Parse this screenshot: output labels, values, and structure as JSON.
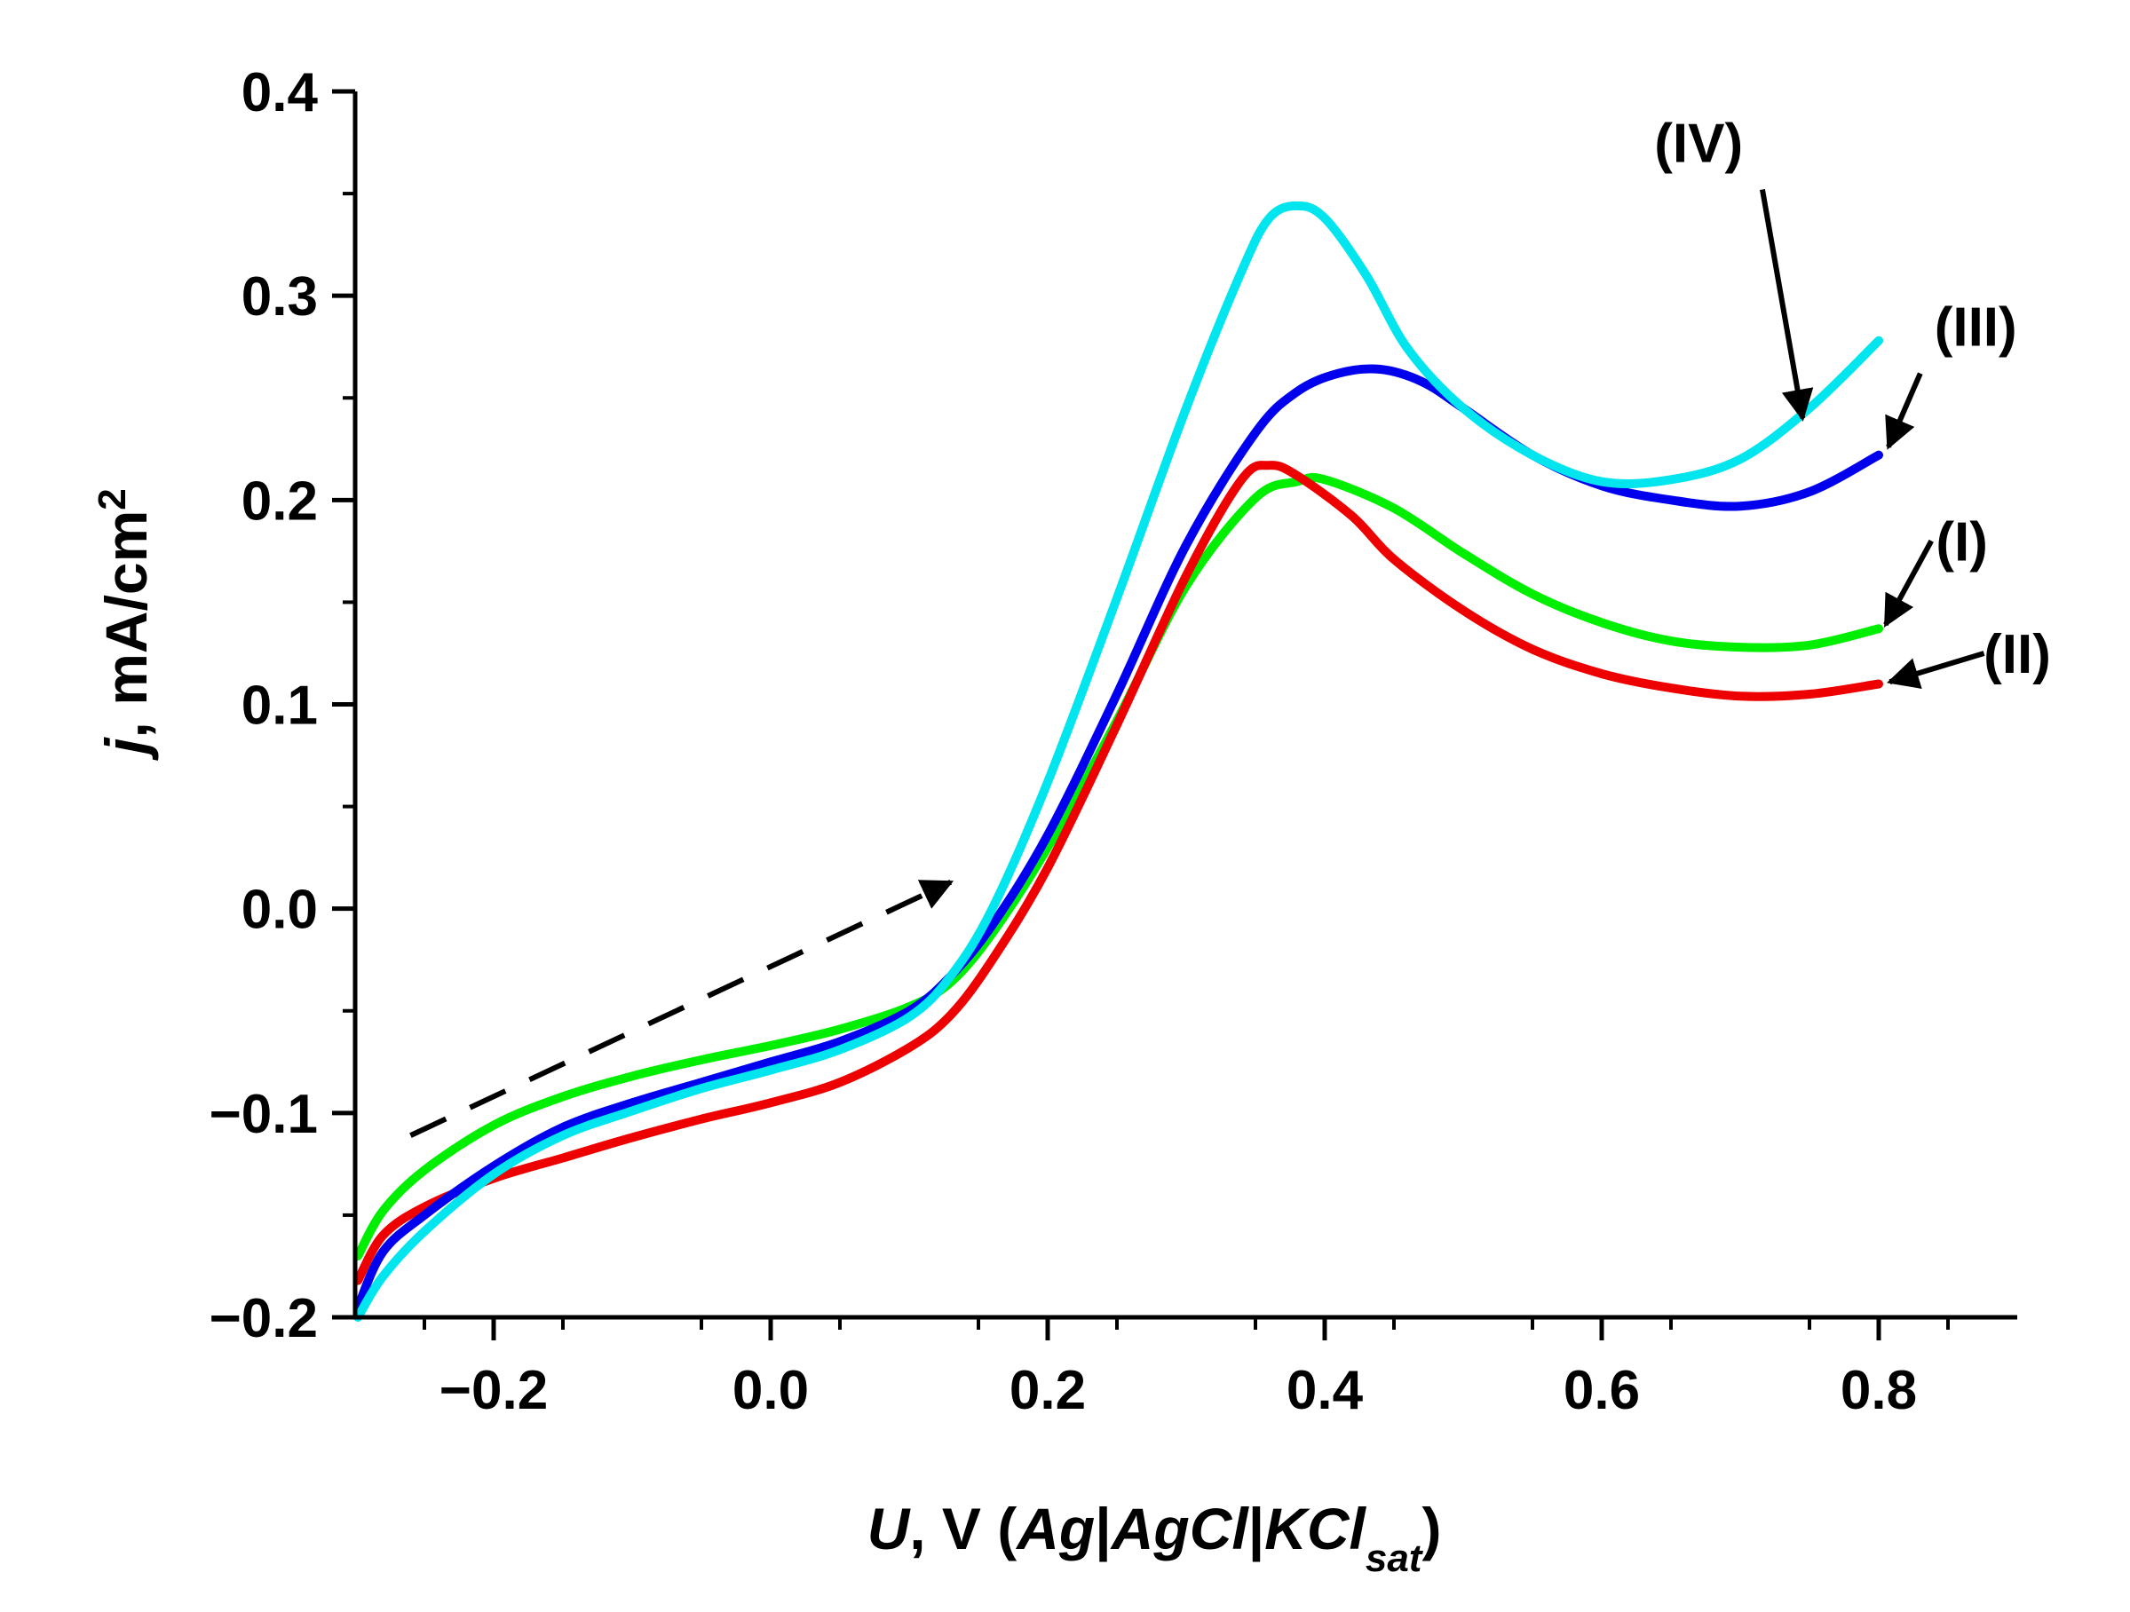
{
  "chart_data": {
    "type": "line",
    "xlabel": {
      "var": "U",
      "unit": ", V (",
      "ref_a": "Ag",
      "sep1": "|",
      "ref_b": "AgCl",
      "sep2": "|",
      "ref_c": "KCl",
      "ref_c_sub": "sat",
      "close": ")"
    },
    "ylabel": {
      "var": "j",
      "unit": ", mA/cm",
      "sup": "2"
    },
    "xlim": [
      -0.3,
      0.9
    ],
    "ylim": [
      -0.2,
      0.4
    ],
    "x_ticks": [
      {
        "value": -0.2,
        "label": "−0.2"
      },
      {
        "value": 0.0,
        "label": "0.0"
      },
      {
        "value": 0.2,
        "label": "0.2"
      },
      {
        "value": 0.4,
        "label": "0.4"
      },
      {
        "value": 0.6,
        "label": "0.6"
      },
      {
        "value": 0.8,
        "label": "0.8"
      }
    ],
    "y_ticks": [
      {
        "value": -0.2,
        "label": "−0.2"
      },
      {
        "value": -0.1,
        "label": "−0.1"
      },
      {
        "value": 0.0,
        "label": "0.0"
      },
      {
        "value": 0.1,
        "label": "0.1"
      },
      {
        "value": 0.2,
        "label": "0.2"
      },
      {
        "value": 0.3,
        "label": "0.3"
      },
      {
        "value": 0.4,
        "label": "0.4"
      }
    ],
    "grid": false,
    "series": [
      {
        "name": "(I)",
        "color": "#00ee00",
        "points": [
          [
            -0.298,
            -0.17
          ],
          [
            -0.28,
            -0.148
          ],
          [
            -0.25,
            -0.128
          ],
          [
            -0.2,
            -0.106
          ],
          [
            -0.15,
            -0.092
          ],
          [
            -0.1,
            -0.082
          ],
          [
            -0.05,
            -0.074
          ],
          [
            0.0,
            -0.067
          ],
          [
            0.05,
            -0.059
          ],
          [
            0.1,
            -0.048
          ],
          [
            0.13,
            -0.036
          ],
          [
            0.16,
            -0.012
          ],
          [
            0.2,
            0.03
          ],
          [
            0.25,
            0.092
          ],
          [
            0.3,
            0.158
          ],
          [
            0.35,
            0.201
          ],
          [
            0.38,
            0.209
          ],
          [
            0.4,
            0.21
          ],
          [
            0.45,
            0.196
          ],
          [
            0.5,
            0.174
          ],
          [
            0.55,
            0.154
          ],
          [
            0.6,
            0.14
          ],
          [
            0.65,
            0.131
          ],
          [
            0.7,
            0.128
          ],
          [
            0.75,
            0.129
          ],
          [
            0.8,
            0.137
          ]
        ]
      },
      {
        "name": "(II)",
        "color": "#ee0000",
        "points": [
          [
            -0.298,
            -0.182
          ],
          [
            -0.28,
            -0.16
          ],
          [
            -0.25,
            -0.146
          ],
          [
            -0.2,
            -0.132
          ],
          [
            -0.15,
            -0.122
          ],
          [
            -0.1,
            -0.112
          ],
          [
            -0.05,
            -0.103
          ],
          [
            0.0,
            -0.095
          ],
          [
            0.05,
            -0.085
          ],
          [
            0.1,
            -0.068
          ],
          [
            0.13,
            -0.052
          ],
          [
            0.16,
            -0.025
          ],
          [
            0.2,
            0.02
          ],
          [
            0.25,
            0.09
          ],
          [
            0.3,
            0.163
          ],
          [
            0.34,
            0.21
          ],
          [
            0.36,
            0.217
          ],
          [
            0.38,
            0.212
          ],
          [
            0.42,
            0.192
          ],
          [
            0.45,
            0.171
          ],
          [
            0.5,
            0.146
          ],
          [
            0.55,
            0.127
          ],
          [
            0.6,
            0.115
          ],
          [
            0.65,
            0.108
          ],
          [
            0.7,
            0.104
          ],
          [
            0.75,
            0.105
          ],
          [
            0.8,
            0.11
          ]
        ]
      },
      {
        "name": "(III)",
        "color": "#0000ee",
        "points": [
          [
            -0.298,
            -0.195
          ],
          [
            -0.28,
            -0.168
          ],
          [
            -0.25,
            -0.15
          ],
          [
            -0.2,
            -0.126
          ],
          [
            -0.15,
            -0.107
          ],
          [
            -0.1,
            -0.095
          ],
          [
            -0.05,
            -0.085
          ],
          [
            0.0,
            -0.075
          ],
          [
            0.05,
            -0.065
          ],
          [
            0.1,
            -0.05
          ],
          [
            0.13,
            -0.033
          ],
          [
            0.16,
            -0.008
          ],
          [
            0.2,
            0.036
          ],
          [
            0.25,
            0.105
          ],
          [
            0.3,
            0.178
          ],
          [
            0.35,
            0.233
          ],
          [
            0.38,
            0.253
          ],
          [
            0.41,
            0.262
          ],
          [
            0.44,
            0.264
          ],
          [
            0.47,
            0.258
          ],
          [
            0.5,
            0.245
          ],
          [
            0.55,
            0.222
          ],
          [
            0.6,
            0.207
          ],
          [
            0.65,
            0.2
          ],
          [
            0.7,
            0.197
          ],
          [
            0.75,
            0.204
          ],
          [
            0.8,
            0.222
          ]
        ]
      },
      {
        "name": "(IV)",
        "color": "#00e5ee",
        "points": [
          [
            -0.298,
            -0.2
          ],
          [
            -0.28,
            -0.18
          ],
          [
            -0.25,
            -0.158
          ],
          [
            -0.2,
            -0.13
          ],
          [
            -0.15,
            -0.111
          ],
          [
            -0.1,
            -0.099
          ],
          [
            -0.05,
            -0.088
          ],
          [
            0.0,
            -0.079
          ],
          [
            0.05,
            -0.069
          ],
          [
            0.1,
            -0.053
          ],
          [
            0.13,
            -0.033
          ],
          [
            0.16,
            0.0
          ],
          [
            0.2,
            0.062
          ],
          [
            0.25,
            0.152
          ],
          [
            0.3,
            0.245
          ],
          [
            0.34,
            0.312
          ],
          [
            0.36,
            0.338
          ],
          [
            0.38,
            0.344
          ],
          [
            0.4,
            0.338
          ],
          [
            0.43,
            0.31
          ],
          [
            0.46,
            0.274
          ],
          [
            0.5,
            0.245
          ],
          [
            0.55,
            0.222
          ],
          [
            0.6,
            0.209
          ],
          [
            0.65,
            0.21
          ],
          [
            0.7,
            0.22
          ],
          [
            0.75,
            0.245
          ],
          [
            0.8,
            0.278
          ]
        ]
      }
    ],
    "annotations": [
      {
        "text": "(IV)",
        "label_x": 0.67,
        "label_y": 0.375,
        "arrow_from": [
          0.716,
          0.352
        ],
        "arrow_to": [
          0.745,
          0.24
        ]
      },
      {
        "text": "(III)",
        "label_x": 0.87,
        "label_y": 0.285,
        "arrow_from": [
          0.83,
          0.262
        ],
        "arrow_to": [
          0.807,
          0.226
        ]
      },
      {
        "text": "(I)",
        "label_x": 0.86,
        "label_y": 0.18,
        "arrow_from": [
          0.838,
          0.18
        ],
        "arrow_to": [
          0.805,
          0.139
        ]
      },
      {
        "text": "(II)",
        "label_x": 0.9,
        "label_y": 0.125,
        "arrow_from": [
          0.876,
          0.125
        ],
        "arrow_to": [
          0.808,
          0.111
        ]
      }
    ],
    "scan_direction_arrow": {
      "from": [
        -0.26,
        -0.111
      ],
      "to": [
        0.13,
        0.013
      ],
      "style": "dashed"
    }
  }
}
